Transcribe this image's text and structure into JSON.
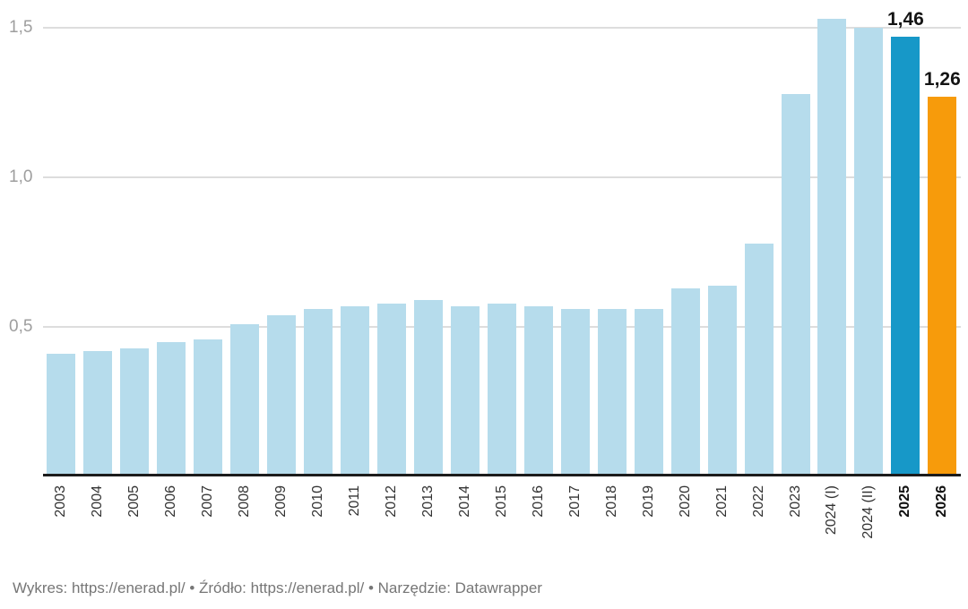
{
  "chart_data": {
    "type": "bar",
    "title": "",
    "xlabel": "",
    "ylabel": "",
    "categories": [
      "2003",
      "2004",
      "2005",
      "2006",
      "2007",
      "2008",
      "2009",
      "2010",
      "2011",
      "2012",
      "2013",
      "2014",
      "2015",
      "2016",
      "2017",
      "2018",
      "2019",
      "2020",
      "2021",
      "2022",
      "2023",
      "2024 (I)",
      "2024 (II)",
      "2025",
      "2026"
    ],
    "values": [
      0.4,
      0.41,
      0.42,
      0.44,
      0.45,
      0.5,
      0.53,
      0.55,
      0.56,
      0.57,
      0.58,
      0.56,
      0.57,
      0.56,
      0.55,
      0.55,
      0.55,
      0.62,
      0.63,
      0.77,
      1.27,
      1.52,
      1.49,
      1.46,
      1.26
    ],
    "yticks": [
      {
        "label": "0,5",
        "value": 0.5
      },
      {
        "label": "1,0",
        "value": 1.0
      },
      {
        "label": "1,5",
        "value": 1.5
      }
    ],
    "ylim": [
      0,
      1.59
    ],
    "grid": true,
    "legend_position": "none",
    "default_bar_color": "#B6DCEC",
    "highlight_colors": {
      "2025": "#1798C8",
      "2026": "#F79B0B"
    },
    "bar_value_labels": {
      "2025": "1,46",
      "2026": "1,26"
    },
    "bold_categories": [
      "2025",
      "2026"
    ]
  },
  "footer": {
    "text": "Wykres: https://enerad.pl/ • Źródło: https://enerad.pl/ • Narzędzie: Datawrapper"
  }
}
